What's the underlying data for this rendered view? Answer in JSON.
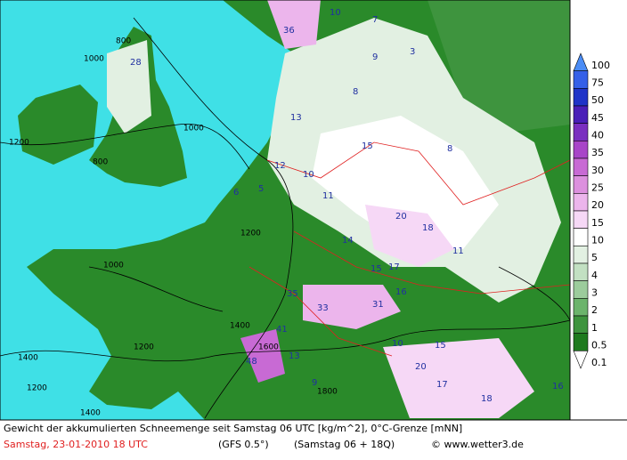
{
  "caption": {
    "line1": "Gewicht der akkumulierten Schneemenge seit Samstag 06 UTC [kg/m^2], 0°C-Grenze [mNN]",
    "date": "Samstag, 23-01-2010   18 UTC",
    "model": "(GFS 0.5°)",
    "run": "(Samstag 06 + 18Q)",
    "source": "© www.wetter3.de"
  },
  "legend": {
    "labels": [
      "100",
      "75",
      "50",
      "45",
      "40",
      "35",
      "30",
      "25",
      "20",
      "15",
      "10",
      "5",
      "4",
      "3",
      "2",
      "1",
      "0.5",
      "0.1"
    ],
    "colors": [
      "#4a8cf5",
      "#3560e8",
      "#1f34c8",
      "#4a1fb8",
      "#7a2fc0",
      "#a845c8",
      "#c86ad4",
      "#dc90de",
      "#ecb5ec",
      "#f6d8f6",
      "#ffffff",
      "#e2f0e2",
      "#c2e0c2",
      "#9ccc9c",
      "#6cb46c",
      "#3e943e",
      "#1e7a1e",
      "#ffffff"
    ]
  },
  "snow_labels": [
    36,
    10,
    7,
    3,
    28,
    9,
    8,
    13,
    12,
    10,
    11,
    6,
    5,
    15,
    8,
    20,
    18,
    14,
    11,
    15,
    17,
    33,
    31,
    35,
    41,
    48,
    16,
    10,
    9,
    13,
    17,
    20,
    15,
    18,
    16
  ],
  "contour_labels": [
    800,
    1000,
    1200,
    1400,
    1200,
    800,
    1000,
    1200,
    1400,
    1000,
    1200,
    1400,
    1600,
    1800
  ]
}
